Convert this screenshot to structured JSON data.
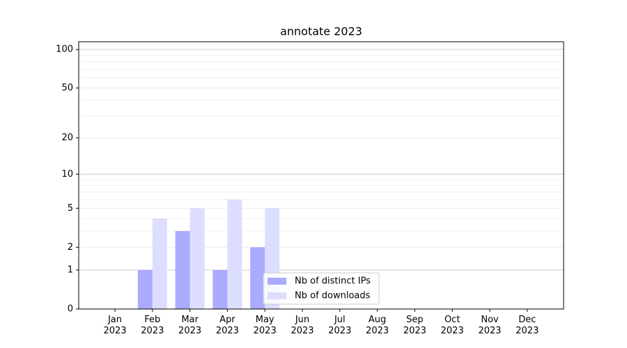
{
  "chart_data": {
    "type": "bar",
    "title": "annotate 2023",
    "categories": [
      "Jan\n2023",
      "Feb\n2023",
      "Mar\n2023",
      "Apr\n2023",
      "May\n2023",
      "Jun\n2023",
      "Jul\n2023",
      "Aug\n2023",
      "Sep\n2023",
      "Oct\n2023",
      "Nov\n2023",
      "Dec\n2023"
    ],
    "series": [
      {
        "name": "Nb of distinct IPs",
        "color": "#aaaaff",
        "values": [
          0,
          1,
          3,
          1,
          2,
          0,
          0,
          0,
          0,
          0,
          0,
          0
        ]
      },
      {
        "name": "Nb of downloads",
        "color": "#ddddff",
        "values": [
          0,
          4,
          5,
          6,
          5,
          0,
          0,
          0,
          0,
          0,
          0,
          0
        ]
      }
    ],
    "yscale": "log1p",
    "ylim": [
      0,
      115
    ],
    "yticks": [
      0,
      1,
      2,
      5,
      10,
      20,
      50,
      100
    ],
    "yminorticks": [
      3,
      4,
      6,
      7,
      8,
      9,
      30,
      40,
      60,
      70,
      80,
      90
    ],
    "grid": true,
    "legend": "lower center"
  }
}
